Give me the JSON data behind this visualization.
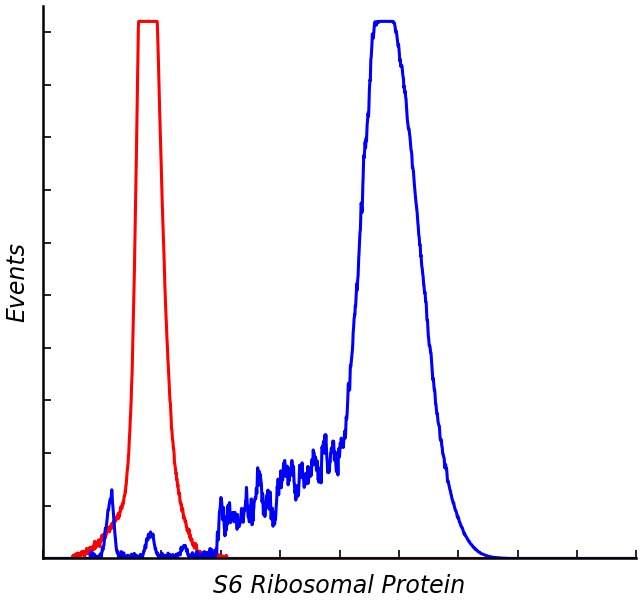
{
  "title": "",
  "xlabel": "S6 Ribosomal Protein",
  "ylabel": "Events",
  "xlabel_fontsize": 17,
  "ylabel_fontsize": 17,
  "xlabel_style": "italic",
  "ylabel_style": "italic",
  "red_color": "#FF0000",
  "blue_color": "#0000FF",
  "linewidth": 2.2,
  "background_color": "#FFFFFF",
  "outer_background": "#FFFFFF",
  "xlim": [
    0,
    1000
  ],
  "ylim": [
    0,
    1050
  ]
}
